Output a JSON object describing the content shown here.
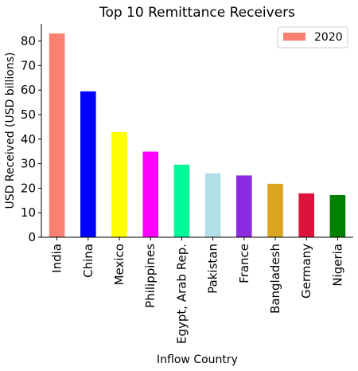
{
  "chart_data": {
    "type": "bar",
    "title": "Top 10 Remittance Receivers",
    "xlabel": "Inflow Country",
    "ylabel": "USD Received (USD billions)",
    "categories": [
      "India",
      "China",
      "Mexico",
      "Philippines",
      "Egypt, Arab Rep.",
      "Pakistan",
      "France",
      "Bangladesh",
      "Germany",
      "Nigeria"
    ],
    "series": [
      {
        "name": "2020",
        "values": [
          83.1,
          59.5,
          42.9,
          34.9,
          29.6,
          26.1,
          25.2,
          21.8,
          17.9,
          17.2
        ],
        "colors": [
          "#fa8072",
          "#0000ff",
          "#ffff00",
          "#ff00ff",
          "#00fa9a",
          "#b0e0e6",
          "#8a2be2",
          "#daa520",
          "#dc143c",
          "#008000"
        ]
      }
    ],
    "ylim": [
      0,
      87
    ],
    "yticks": [
      0,
      10,
      20,
      30,
      40,
      50,
      60,
      70,
      80
    ],
    "grid": false,
    "legend": {
      "position": "top-right",
      "swatch_color": "#fa8072"
    }
  }
}
